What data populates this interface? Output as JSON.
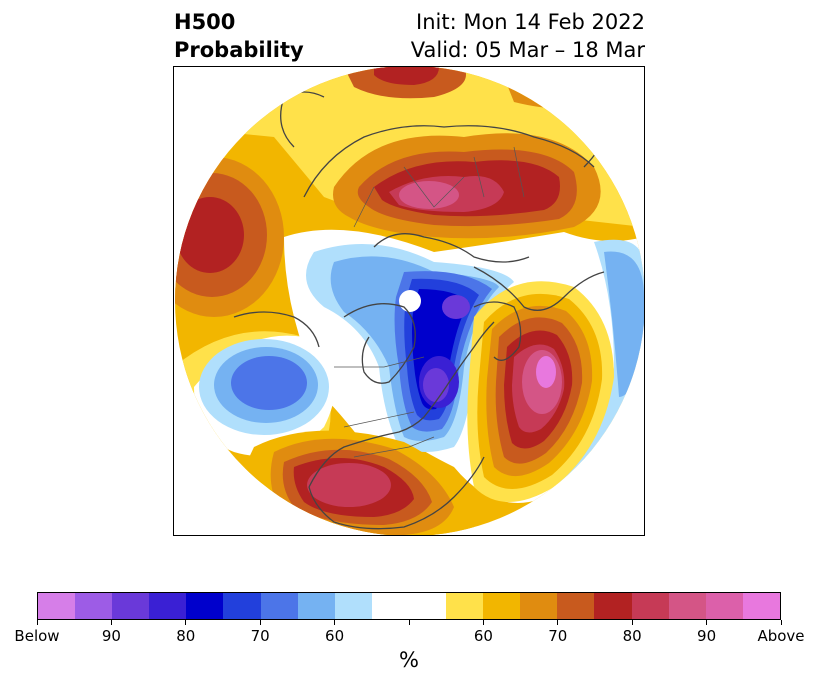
{
  "header": {
    "variable": "H500",
    "product": "Probability",
    "init": "Init: Mon 14 Feb 2022",
    "valid": "Valid: 05 Mar – 18 Mar"
  },
  "colorbar": {
    "unit": "%",
    "colors": [
      "#d67ee8",
      "#9d5ce6",
      "#6a39d9",
      "#3a20d4",
      "#0000cc",
      "#2240dc",
      "#4c75e8",
      "#75b2f2",
      "#b0dffc",
      "#ffffff",
      "#ffffff",
      "#ffe14a",
      "#f2b600",
      "#e08c10",
      "#c85a1e",
      "#b22222",
      "#c63a56",
      "#d45586",
      "#dc60aa",
      "#e878de"
    ],
    "tick_labels": [
      "Below",
      "90",
      "80",
      "70",
      "60",
      "",
      "60",
      "70",
      "80",
      "90",
      "Above"
    ]
  },
  "legend_colors": {
    "below": "#0000cc",
    "above": "#b22222",
    "neutral": "#ffffff"
  }
}
